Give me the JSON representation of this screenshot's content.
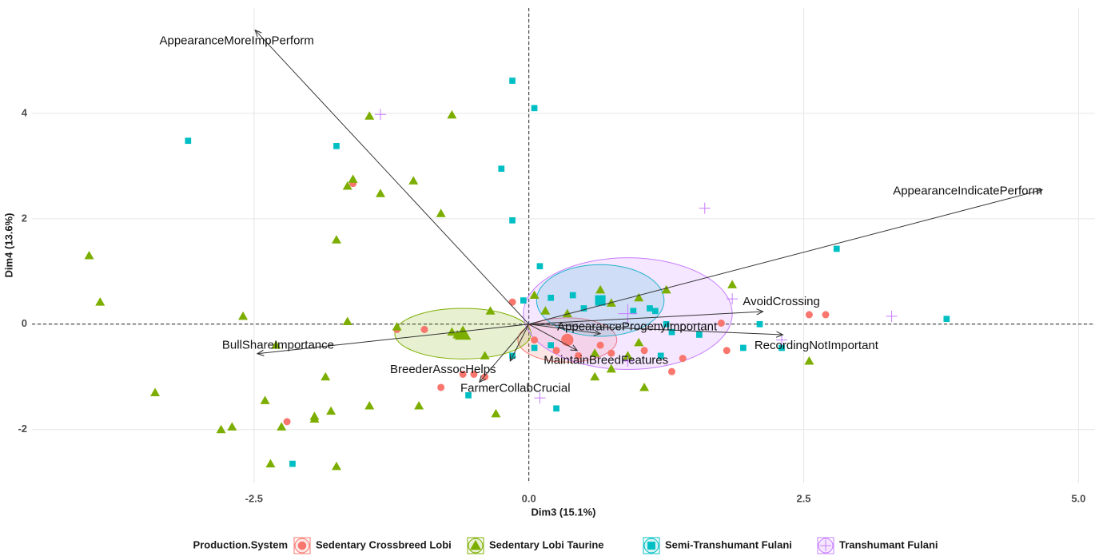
{
  "chart_data": {
    "type": "biplot",
    "x_label": "Dim3 (15.1%)",
    "y_label": "Dim4 (13.6%)",
    "xlim": [
      -4.52,
      5.15
    ],
    "ylim": [
      -3.02,
      6.0
    ],
    "xticks": [
      -2.5,
      {
        "value": 0,
        "label": "0.0"
      },
      2.5,
      {
        "value": 5,
        "label": "5.0"
      }
    ],
    "yticks": [
      -2,
      0,
      2,
      4
    ],
    "grid": true,
    "legend_title": "Production.System",
    "legend_position": "bottom",
    "series": [
      {
        "name": "Sedentary Crossbreed Lobi",
        "color": "#f8766d",
        "marker": "circle",
        "x": [
          -1.6,
          -1.2,
          -0.95,
          -0.8,
          -2.2,
          -0.4,
          -0.15,
          0.05,
          0.25,
          0.35,
          0.45,
          0.65,
          0.75,
          1.05,
          1.3,
          1.4,
          1.75,
          1.8,
          2.55,
          2.7,
          -0.6,
          -0.5
        ],
        "values": [
          2.67,
          -0.1,
          -0.1,
          -1.2,
          -1.85,
          -1.0,
          0.42,
          -0.3,
          -0.5,
          -0.25,
          -0.6,
          -0.4,
          -0.55,
          -0.5,
          -0.9,
          -0.65,
          0.02,
          -0.5,
          0.18,
          0.18,
          -0.95,
          -0.95
        ],
        "centroid": [
          0.35,
          -0.3
        ],
        "ellipse_radii": [
          0.45,
          0.42
        ]
      },
      {
        "name": "Sedentary Lobi Taurine",
        "color": "#7cae00",
        "marker": "triangle",
        "x": [
          -4.0,
          -3.9,
          -3.4,
          -2.6,
          -2.4,
          -2.35,
          -2.25,
          -2.8,
          -2.7,
          -2.3,
          -1.85,
          -1.8,
          -1.95,
          -1.95,
          -1.75,
          -1.6,
          -1.65,
          -1.35,
          -1.45,
          -0.7,
          -1.05,
          -0.8,
          -1.65,
          -1.45,
          -1.0,
          -1.75,
          -0.3,
          -0.35,
          -0.7,
          -0.65,
          -0.4,
          0.05,
          0.15,
          0.35,
          0.65,
          0.75,
          1.0,
          1.25,
          1.85,
          0.6,
          0.75,
          0.9,
          1.0,
          1.05,
          2.55,
          0.6,
          -1.2
        ],
        "values": [
          1.3,
          0.42,
          -1.3,
          0.15,
          -1.45,
          -2.65,
          -1.95,
          -2.0,
          -1.95,
          -0.4,
          -1.0,
          -1.65,
          -1.75,
          -1.8,
          1.6,
          2.75,
          2.62,
          2.48,
          3.95,
          3.97,
          2.72,
          2.1,
          0.05,
          -1.55,
          -1.55,
          -2.7,
          -1.7,
          0.25,
          -0.15,
          -0.2,
          -0.6,
          0.55,
          0.25,
          0.2,
          0.65,
          0.4,
          0.5,
          0.65,
          0.75,
          -0.55,
          -0.85,
          -0.6,
          -0.35,
          -1.2,
          -0.7,
          -1.0,
          -0.05
        ],
        "centroid": [
          -0.6,
          -0.18
        ],
        "ellipse_radii": [
          0.62,
          0.48
        ]
      },
      {
        "name": "Semi-Transhumant Fulani",
        "color": "#00bfc4",
        "marker": "square",
        "x": [
          -3.1,
          -1.75,
          -0.15,
          0.05,
          -0.25,
          -0.15,
          0.1,
          2.8,
          3.8,
          -2.15,
          -0.55,
          0.25,
          0.2,
          -0.05,
          0.5,
          0.95,
          1.1,
          1.15,
          1.3,
          1.25,
          1.55,
          1.95,
          2.1,
          2.3,
          0.05,
          0.2,
          1.2,
          -0.15,
          0.4
        ],
        "values": [
          3.48,
          3.38,
          4.62,
          4.1,
          2.95,
          1.97,
          1.1,
          1.43,
          0.1,
          -2.65,
          -1.35,
          -1.6,
          0.5,
          0.45,
          0.3,
          0.25,
          0.3,
          0.25,
          -0.15,
          0,
          -0.2,
          -0.45,
          0,
          -0.45,
          -0.45,
          -0.4,
          -0.6,
          -0.6,
          0.55
        ],
        "centroid": [
          0.65,
          0.45
        ],
        "ellipse_radii": [
          0.58,
          0.68
        ]
      },
      {
        "name": "Transhumant Fulani",
        "color": "#c77cff",
        "marker": "plus",
        "x": [
          -1.35,
          1.6,
          1.85,
          3.3,
          0.1,
          2.3,
          0.9
        ],
        "values": [
          3.98,
          2.2,
          0.48,
          0.15,
          -1.4,
          -0.3,
          -0.7
        ],
        "centroid": [
          0.9,
          0.2
        ],
        "ellipse_radii": [
          0.95,
          1.06
        ]
      }
    ],
    "vectors": [
      {
        "label": "AppearanceMoreImpPerform",
        "x": -2.49,
        "y": 5.58
      },
      {
        "label": "AppearanceIndicatePerform",
        "x": 4.67,
        "y": 2.55
      },
      {
        "label": "AvoidCrossing",
        "x": 2.13,
        "y": 0.24
      },
      {
        "label": "RecordingNotImportant",
        "x": 2.31,
        "y": -0.2
      },
      {
        "label": "BullShareImportance",
        "x": -2.47,
        "y": -0.56
      },
      {
        "label": "AppearanceProgenyImportant",
        "x": 0.65,
        "y": -0.18
      },
      {
        "label": "MaintainBreedFeatures",
        "x": 0.44,
        "y": -0.5
      },
      {
        "label": "BreederAssocHelps",
        "x": -0.17,
        "y": -0.7
      },
      {
        "label": "FarmerCollabCrucial",
        "x": -0.45,
        "y": -1.1
      }
    ]
  }
}
